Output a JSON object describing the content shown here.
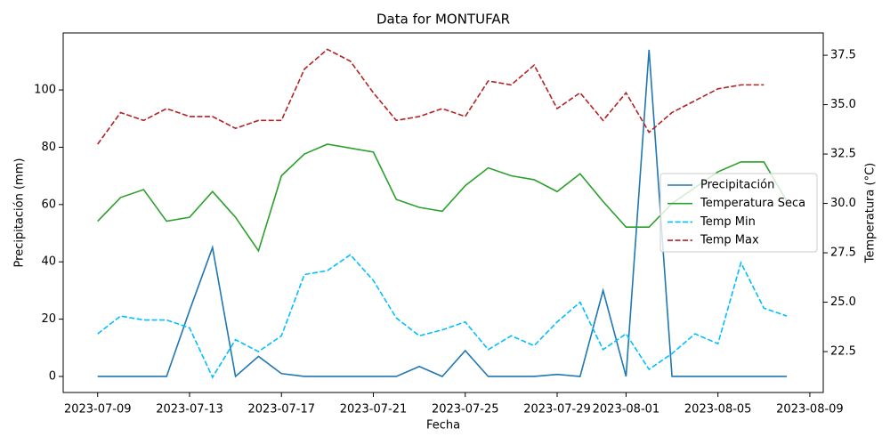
{
  "chart_data": {
    "type": "line",
    "title": "Data for MONTUFAR",
    "xlabel": "Fecha",
    "ylabel": "Precipitación (mm)",
    "y2label": "Temperatura (°C)",
    "x": [
      "2023-07-09",
      "2023-07-10",
      "2023-07-11",
      "2023-07-12",
      "2023-07-13",
      "2023-07-14",
      "2023-07-15",
      "2023-07-16",
      "2023-07-17",
      "2023-07-18",
      "2023-07-19",
      "2023-07-20",
      "2023-07-21",
      "2023-07-22",
      "2023-07-23",
      "2023-07-24",
      "2023-07-25",
      "2023-07-26",
      "2023-07-27",
      "2023-07-28",
      "2023-07-29",
      "2023-07-30",
      "2023-07-31",
      "2023-08-01",
      "2023-08-02",
      "2023-08-03",
      "2023-08-04",
      "2023-08-05",
      "2023-08-06",
      "2023-08-07",
      "2023-08-08"
    ],
    "xlim": [
      "2023-07-07T12:00",
      "2023-08-09T14:00"
    ],
    "xticks": [
      "2023-07-09",
      "2023-07-13",
      "2023-07-17",
      "2023-07-21",
      "2023-07-25",
      "2023-07-29",
      "2023-08-01",
      "2023-08-05",
      "2023-08-09"
    ],
    "ylim": [
      -5.6,
      119.9
    ],
    "yticks": [
      0,
      20,
      40,
      60,
      80,
      100
    ],
    "y2lim": [
      20.43,
      38.63
    ],
    "y2ticks": [
      22.5,
      {
        "value": 25,
        "label": "25.0"
      },
      27.5,
      {
        "value": 30,
        "label": "30.0"
      },
      32.5,
      {
        "value": 35,
        "label": "35.0"
      },
      37.5
    ],
    "ycolor": "#1f77b4",
    "y2color": "#d62728",
    "legend": "center right",
    "series": [
      {
        "name": "Precipitación",
        "color": "#1f77b4",
        "dashed": false,
        "values": [
          0,
          0,
          0,
          0,
          23,
          45,
          0,
          7,
          1,
          0,
          0,
          0,
          0,
          0,
          3.5,
          0,
          9,
          0,
          0,
          0,
          0.7,
          0,
          30,
          0,
          114,
          0,
          0,
          0,
          0,
          0,
          0
        ]
      },
      {
        "name": "Temperatura Seca",
        "color": "#2ca02c",
        "dashed": false,
        "axis": "y2",
        "values": [
          29.1,
          30.3,
          30.7,
          29.1,
          29.3,
          30.6,
          29.3,
          27.6,
          31.4,
          32.5,
          33.0,
          32.8,
          32.6,
          30.2,
          29.8,
          29.6,
          30.9,
          31.8,
          31.4,
          31.2,
          30.6,
          31.5,
          30.1,
          28.8,
          28.8,
          30.0,
          30.8,
          31.6,
          32.1,
          32.1,
          30.1
        ]
      },
      {
        "name": "Temp Min",
        "color": "#00bfff",
        "dashed": true,
        "axis": "y2",
        "values": [
          23.4,
          24.3,
          24.1,
          24.1,
          23.7,
          21.2,
          23.1,
          22.5,
          23.3,
          26.4,
          26.6,
          27.4,
          26.1,
          24.2,
          23.3,
          23.6,
          24.0,
          22.6,
          23.3,
          22.8,
          24.0,
          25.0,
          22.6,
          23.4,
          21.6,
          22.4,
          23.4,
          22.9,
          27.0,
          24.7,
          24.3
        ]
      },
      {
        "name": "Temp Max",
        "color": "#b22222",
        "dashed": true,
        "axis": "y2",
        "values": [
          33.0,
          34.6,
          34.2,
          34.8,
          34.4,
          34.4,
          33.8,
          34.2,
          34.2,
          36.8,
          37.8,
          37.2,
          35.6,
          34.2,
          34.4,
          34.8,
          34.4,
          36.2,
          36.0,
          37.0,
          34.8,
          35.6,
          34.2,
          35.6,
          33.6,
          34.6,
          35.2,
          35.8,
          36.0,
          36.0,
          null
        ]
      }
    ]
  }
}
